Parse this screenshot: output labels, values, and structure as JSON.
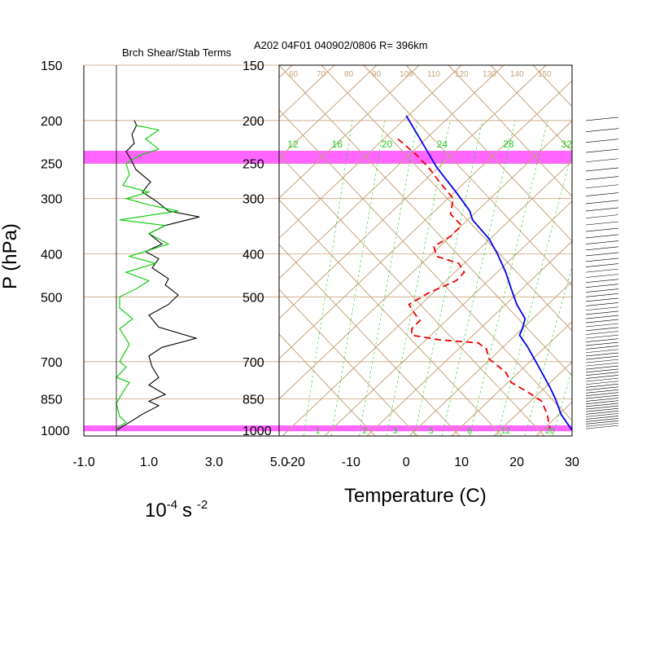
{
  "colors": {
    "grid": "#c8a27a",
    "band": "#ff66ff",
    "temperature": "#0000ee",
    "dewpoint": "#ee0000",
    "shear_term": "#000000",
    "stab_term": "#00cc00",
    "mixing_ratio": "#22cc22",
    "frame": "#000000"
  },
  "chart_data": [
    {
      "type": "line",
      "title": "Brch Shear/Stab Terms",
      "xlabel": "10",
      "xlabel_exponent": "-4",
      "xlabel_unit": "s",
      "xlabel_unit_exponent": "-2",
      "ylabel": "P (hPa)",
      "y_scale": "log",
      "ylim": [
        1030,
        150
      ],
      "xlim": [
        -1.0,
        5.0
      ],
      "x_tick_labels": [
        "-1.0",
        "1.0",
        "3.0",
        "5.0"
      ],
      "x_ticks": [
        -1.0,
        1.0,
        3.0,
        5.0
      ],
      "y_tick_labels": [
        "150",
        "200",
        "250",
        "300",
        "400",
        "500",
        "700",
        "850",
        "1000"
      ],
      "y_ticks": [
        150,
        200,
        250,
        300,
        400,
        500,
        700,
        850,
        1000
      ],
      "highlight_bands_hpa": [
        [
          234,
          250
        ],
        [
          975,
          1005
        ]
      ],
      "series": [
        {
          "role": "shear",
          "points": [
            [
              0.55,
              200
            ],
            [
              0.62,
              205
            ],
            [
              0.48,
              215
            ],
            [
              0.55,
              225
            ],
            [
              0.3,
              235
            ],
            [
              0.45,
              245
            ],
            [
              0.6,
              258
            ],
            [
              1.05,
              275
            ],
            [
              0.8,
              290
            ],
            [
              1.25,
              305
            ],
            [
              1.6,
              320
            ],
            [
              2.55,
              330
            ],
            [
              1.5,
              345
            ],
            [
              1.0,
              360
            ],
            [
              1.4,
              380
            ],
            [
              0.9,
              395
            ],
            [
              1.3,
              410
            ],
            [
              1.1,
              430
            ],
            [
              1.6,
              455
            ],
            [
              1.5,
              470
            ],
            [
              1.9,
              495
            ],
            [
              1.6,
              520
            ],
            [
              1.0,
              550
            ],
            [
              1.3,
              585
            ],
            [
              2.45,
              620
            ],
            [
              1.4,
              650
            ],
            [
              1.0,
              680
            ],
            [
              1.1,
              720
            ],
            [
              1.3,
              760
            ],
            [
              1.0,
              790
            ],
            [
              1.5,
              830
            ],
            [
              1.0,
              860
            ],
            [
              1.3,
              880
            ],
            [
              0.8,
              920
            ],
            [
              0.3,
              970
            ],
            [
              0.1,
              990
            ],
            [
              0.0,
              1000
            ]
          ]
        },
        {
          "role": "stab",
          "points": [
            [
              0.6,
              205
            ],
            [
              1.3,
              210
            ],
            [
              0.9,
              220
            ],
            [
              1.3,
              232
            ],
            [
              0.7,
              240
            ],
            [
              0.3,
              250
            ],
            [
              0.4,
              265
            ],
            [
              0.2,
              280
            ],
            [
              1.0,
              290
            ],
            [
              0.3,
              300
            ],
            [
              1.0,
              310
            ],
            [
              1.9,
              320
            ],
            [
              0.1,
              335
            ],
            [
              1.5,
              345
            ],
            [
              1.0,
              360
            ],
            [
              1.6,
              380
            ],
            [
              0.4,
              405
            ],
            [
              1.2,
              420
            ],
            [
              0.3,
              440
            ],
            [
              1.0,
              460
            ],
            [
              0.6,
              480
            ],
            [
              0.1,
              500
            ],
            [
              0.1,
              530
            ],
            [
              0.5,
              560
            ],
            [
              0.1,
              590
            ],
            [
              0.4,
              640
            ],
            [
              0.1,
              700
            ],
            [
              0.3,
              720
            ],
            [
              0.0,
              760
            ],
            [
              0.4,
              780
            ],
            [
              0.2,
              820
            ],
            [
              0.0,
              870
            ],
            [
              0.1,
              930
            ],
            [
              0.3,
              960
            ],
            [
              0.1,
              980
            ],
            [
              0.0,
              1000
            ]
          ]
        }
      ]
    },
    {
      "type": "line",
      "title": "A202 04F01 040902/0806 R= 396km",
      "xlabel": "Temperature (C)",
      "y_scale": "log",
      "ylim": [
        1030,
        150
      ],
      "xlim": [
        -23,
        30
      ],
      "x_tick_labels": [
        "-20",
        "-10",
        "0",
        "10",
        "20",
        "30"
      ],
      "x_ticks": [
        -20,
        -10,
        0,
        10,
        20,
        30
      ],
      "y_tick_labels": [
        "150",
        "200",
        "250",
        "300",
        "400",
        "500",
        "700",
        "850",
        "1000"
      ],
      "y_ticks": [
        150,
        200,
        250,
        300,
        400,
        500,
        700,
        850,
        1000
      ],
      "mixing_ratio_labels": [
        "12",
        "16",
        "20",
        "24",
        "28",
        "32"
      ],
      "mixing_ratio_positions_c": [
        -20.5,
        -12.5,
        -3.5,
        6.5,
        18.5,
        29
      ],
      "bottom_mixing_ratio_labels": [
        "1",
        "2",
        "3",
        "5",
        "8",
        "12",
        "20"
      ],
      "bottom_mixing_ratio_positions_c": [
        -16,
        -7.5,
        -2,
        4.5,
        11.5,
        18,
        26
      ],
      "adiabat_labels": [
        "60",
        "70",
        "80",
        "90",
        "100",
        "110",
        "120",
        "130",
        "140",
        "150"
      ],
      "highlight_bands_hpa": [
        [
          234,
          250
        ],
        [
          975,
          1005
        ]
      ],
      "series": [
        {
          "role": "temperature",
          "points": [
            [
              0.0,
              195
            ],
            [
              2.5,
              220
            ],
            [
              5.5,
              255
            ],
            [
              9.0,
              290
            ],
            [
              11.5,
              320
            ],
            [
              12.0,
              335
            ],
            [
              15.0,
              370
            ],
            [
              16.5,
              400
            ],
            [
              18.0,
              440
            ],
            [
              19.0,
              480
            ],
            [
              20.0,
              520
            ],
            [
              21.5,
              560
            ],
            [
              21.0,
              590
            ],
            [
              20.5,
              610
            ],
            [
              22.0,
              650
            ],
            [
              24.0,
              720
            ],
            [
              26.0,
              800
            ],
            [
              27.0,
              850
            ],
            [
              28.0,
              920
            ],
            [
              30.0,
              1000
            ]
          ]
        },
        {
          "role": "dewpoint",
          "points": [
            [
              -1.5,
              220
            ],
            [
              2.0,
              240
            ],
            [
              4.0,
              255
            ],
            [
              6.0,
              275
            ],
            [
              8.5,
              300
            ],
            [
              8.0,
              325
            ],
            [
              10.0,
              345
            ],
            [
              8.0,
              365
            ],
            [
              5.0,
              385
            ],
            [
              5.5,
              405
            ],
            [
              9.5,
              420
            ],
            [
              10.5,
              440
            ],
            [
              9.0,
              460
            ],
            [
              4.0,
              490
            ],
            [
              0.5,
              520
            ],
            [
              1.5,
              545
            ],
            [
              2.5,
              565
            ],
            [
              1.0,
              590
            ],
            [
              1.0,
              610
            ],
            [
              6.0,
              625
            ],
            [
              13.0,
              635
            ],
            [
              14.5,
              655
            ],
            [
              15.0,
              690
            ],
            [
              18.0,
              740
            ],
            [
              19.0,
              780
            ],
            [
              22.0,
              820
            ],
            [
              24.5,
              860
            ],
            [
              25.5,
              920
            ],
            [
              26.0,
              990
            ]
          ]
        }
      ]
    }
  ]
}
